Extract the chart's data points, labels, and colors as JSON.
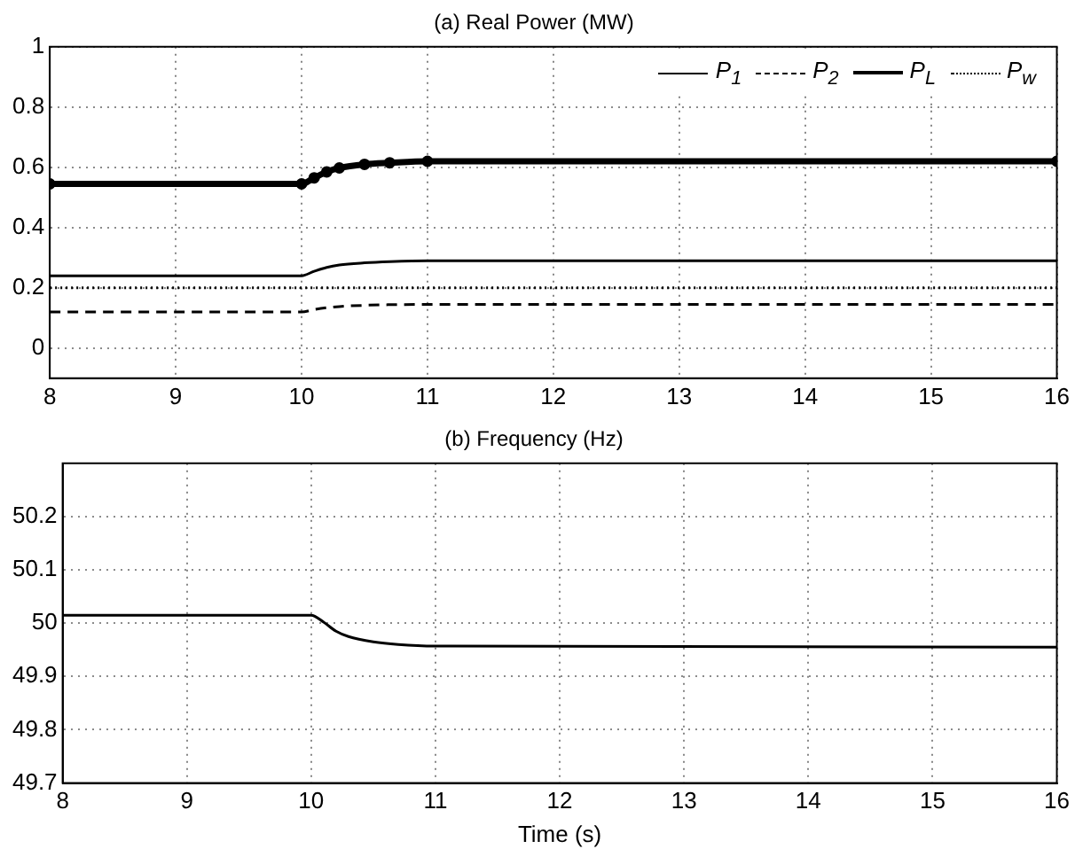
{
  "chart_data": [
    {
      "type": "line",
      "title": "(a) Real Power (MW)",
      "x": [
        8,
        10,
        10.1,
        10.2,
        10.3,
        10.5,
        10.7,
        11,
        16
      ],
      "xlim": [
        8,
        16
      ],
      "xticks": [
        8,
        9,
        10,
        11,
        12,
        13,
        14,
        15,
        16
      ],
      "ylim": [
        -0.1,
        1
      ],
      "yticks": [
        0,
        0.2,
        0.4,
        0.6,
        0.8,
        1
      ],
      "grid": true,
      "legend": "top right",
      "series": [
        {
          "name": "P$_{1}$",
          "color": "#000000",
          "line_style": "solid",
          "values": [
            0.24,
            0.24,
            0.255,
            0.268,
            0.276,
            0.283,
            0.287,
            0.29,
            0.29
          ]
        },
        {
          "name": "P$_{2}$",
          "color": "#000000",
          "line_style": "dashed",
          "values": [
            0.12,
            0.12,
            0.128,
            0.134,
            0.138,
            0.142,
            0.144,
            0.145,
            0.145
          ]
        },
        {
          "name": "P$_{L}$",
          "color": "#000000",
          "line_style": "solid",
          "marker": "circle",
          "values": [
            0.545,
            0.545,
            0.565,
            0.585,
            0.598,
            0.61,
            0.615,
            0.62,
            0.62
          ]
        },
        {
          "name": "P$_{w}$",
          "color": "#000000",
          "line_style": "dotted",
          "x": [
            8,
            16
          ],
          "values": [
            0.2,
            0.2
          ]
        }
      ]
    },
    {
      "type": "line",
      "title": "(b) Frequency (Hz)",
      "xlabel": "Time (s)",
      "x": [
        8,
        10,
        10.1,
        10.2,
        10.3,
        10.5,
        10.7,
        11,
        16
      ],
      "xlim": [
        8,
        16
      ],
      "xticks": [
        8,
        9,
        10,
        11,
        12,
        13,
        14,
        15,
        16
      ],
      "ylim": [
        49.7,
        50.3
      ],
      "yticks": [
        49.7,
        49.8,
        49.9,
        50,
        50.1,
        50.2
      ],
      "grid": true,
      "series": [
        {
          "color": "#000000",
          "line_style": "solid",
          "values": [
            50.015,
            50.015,
            50.002,
            49.985,
            49.975,
            49.965,
            49.96,
            49.957,
            49.955
          ]
        }
      ]
    }
  ]
}
